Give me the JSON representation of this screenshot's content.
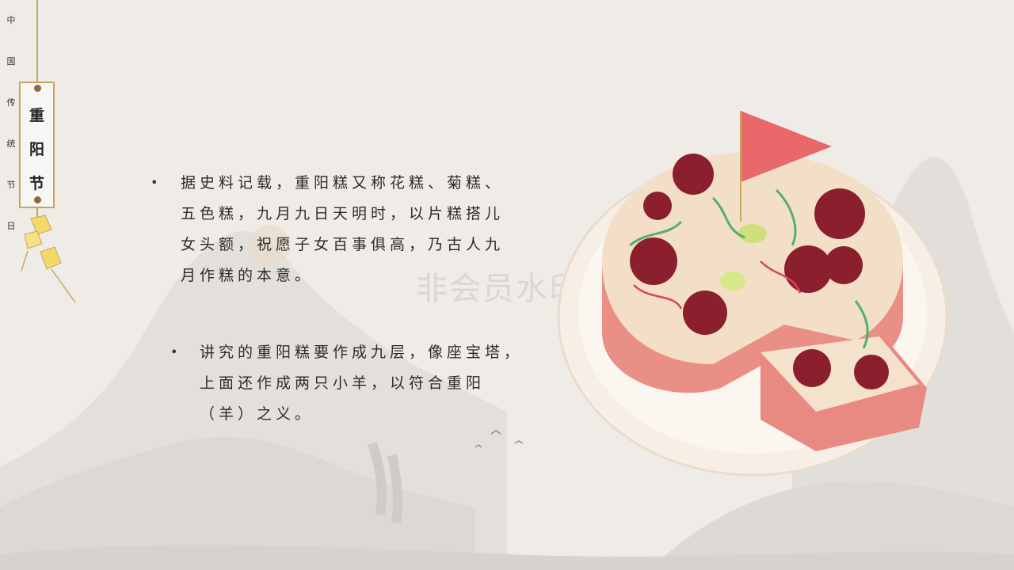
{
  "side_label": {
    "chars": [
      "中",
      "国",
      "传",
      "统",
      "节",
      "日"
    ]
  },
  "tag": {
    "chars": [
      "重",
      "阳",
      "节"
    ]
  },
  "paragraphs": [
    {
      "lines": [
        "据史料记载，重阳糕又称花糕、菊糕、",
        "五色糕，九月九日天明时，以片糕搭儿",
        "女头额，祝愿子女百事俱高，乃古人九",
        "月作糕的本意。"
      ]
    },
    {
      "lines": [
        "讲究的重阳糕要作成九层，像座宝塔，",
        "上面还作成两只小羊，以符合重阳",
        "（羊）之义。"
      ]
    }
  ],
  "watermark": "非会员水印",
  "colors": {
    "gold": "#c9a55a",
    "text": "#2b2b2b",
    "background": "#efece7",
    "date_red": "#8b1f2e",
    "flag": "#e9686c"
  }
}
